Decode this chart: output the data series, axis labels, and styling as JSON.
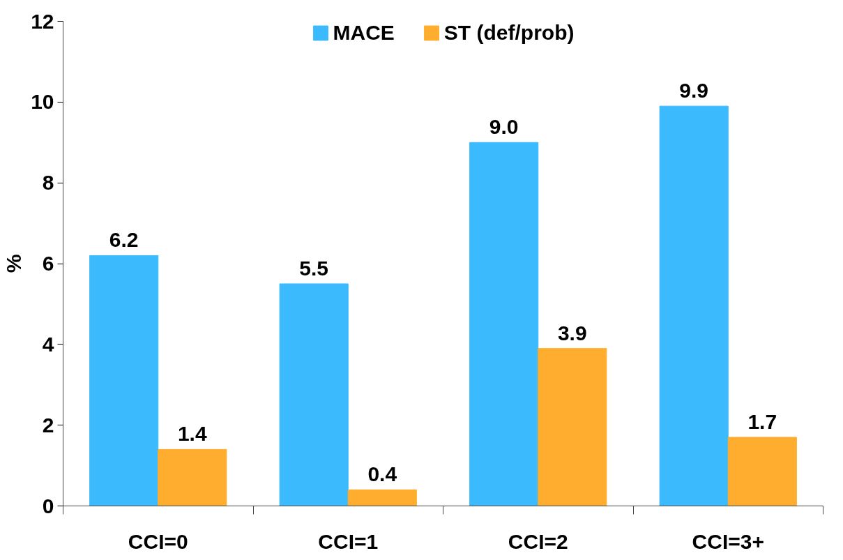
{
  "chart_data": {
    "type": "bar",
    "ylabel": "%",
    "categories": [
      "CCI=0",
      "CCI=1",
      "CCI=2",
      "CCI=3+"
    ],
    "series": [
      {
        "name": "MACE",
        "color": "#3bbafd",
        "values": [
          6.2,
          5.5,
          9.0,
          9.9
        ],
        "value_labels": [
          "6.2",
          "5.5",
          "9.0",
          "9.9"
        ]
      },
      {
        "name": "ST (def/prob)",
        "color": "#ffad2e",
        "values": [
          1.4,
          0.4,
          3.9,
          1.7
        ],
        "value_labels": [
          "1.4",
          "0.4",
          "3.9",
          "1.7"
        ]
      }
    ],
    "ylim": [
      0,
      12
    ],
    "yticks": [
      0,
      2,
      4,
      6,
      8,
      10,
      12
    ],
    "grid": false,
    "legend": "top"
  }
}
